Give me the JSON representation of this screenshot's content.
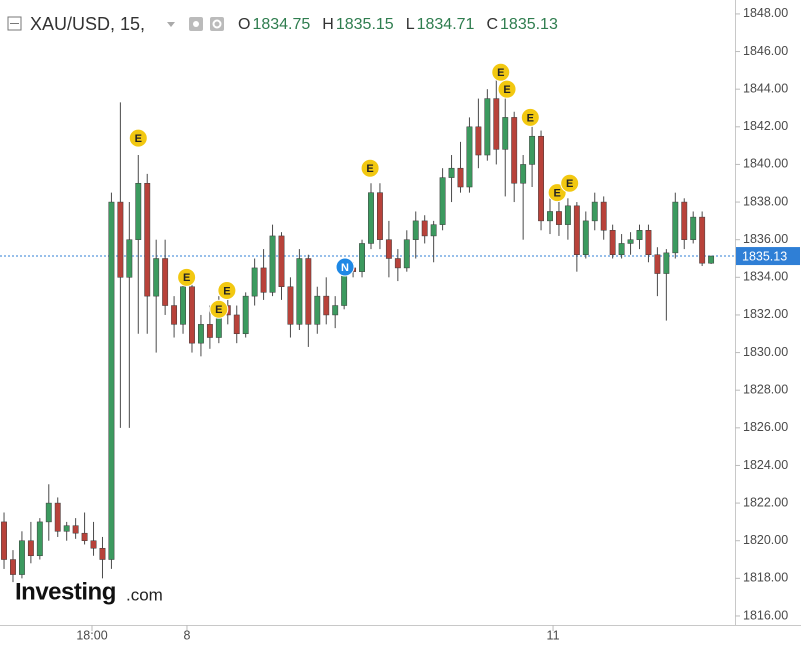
{
  "chart_data": {
    "type": "candlestick",
    "title": "XAU/USD, 15,",
    "ohlc_legend": [
      {
        "label": "O",
        "value": 1834.75
      },
      {
        "label": "H",
        "value": 1835.15
      },
      {
        "label": "L",
        "value": 1834.71
      },
      {
        "label": "C",
        "value": 1835.13
      }
    ],
    "open": [
      1821,
      1819,
      1818.2,
      1820,
      1819.2,
      1821,
      1822,
      1820.5,
      1820.8,
      1820.4,
      1820,
      1819.6,
      1819,
      1838,
      1834,
      1836,
      1839,
      1833,
      1835,
      1832.5,
      1831.5,
      1833.5,
      1830.5,
      1831.5,
      1830.8,
      1832.5,
      1832,
      1831,
      1833,
      1834.5,
      1833.2,
      1836.2,
      1833.5,
      1831.5,
      1835,
      1831.5,
      1833,
      1832,
      1832.5,
      1834.5,
      1834.3,
      1835.8,
      1838.5,
      1836,
      1835,
      1834.5,
      1836,
      1837,
      1836.2,
      1836.8,
      1839.3,
      1839.8,
      1838.8,
      1842,
      1840.5,
      1843.5,
      1840.8,
      1842.5,
      1839,
      1840,
      1841.5,
      1837,
      1837.5,
      1836.8,
      1837.8,
      1835.2,
      1837,
      1838,
      1836.5,
      1835.2,
      1835.8,
      1836,
      1836.5,
      1835.2,
      1834.2,
      1835.3,
      1838,
      1836,
      1837.2,
      1834.75
    ],
    "high": [
      1821.5,
      1819.5,
      1820.5,
      1821,
      1821.2,
      1823,
      1822.3,
      1821,
      1821.2,
      1821.5,
      1821,
      1820.2,
      1838.5,
      1843.3,
      1838,
      1840.5,
      1839.5,
      1836,
      1836,
      1833,
      1834,
      1833.8,
      1832,
      1832.5,
      1833,
      1833.4,
      1832.5,
      1833.2,
      1835,
      1835.5,
      1836.8,
      1836.4,
      1834,
      1835.5,
      1835.2,
      1833.5,
      1834,
      1833,
      1835,
      1834.8,
      1836,
      1839,
      1839,
      1837,
      1835.5,
      1836.5,
      1837.5,
      1837.3,
      1837,
      1839.8,
      1840.5,
      1841.2,
      1842.5,
      1843.5,
      1844,
      1845,
      1843.5,
      1842.8,
      1840.5,
      1842,
      1841.8,
      1838.5,
      1838.5,
      1838.2,
      1838,
      1837.5,
      1838.5,
      1838.3,
      1836.8,
      1836.3,
      1836.4,
      1836.8,
      1836.8,
      1835.6,
      1835.5,
      1838.5,
      1838.2,
      1837.5,
      1837.5,
      1835.15
    ],
    "low": [
      1818.5,
      1817.8,
      1818,
      1818.8,
      1819,
      1820,
      1820.2,
      1820,
      1820.1,
      1819.8,
      1819.2,
      1818,
      1818.5,
      1826,
      1826,
      1831,
      1831,
      1830,
      1832,
      1830.8,
      1831,
      1830,
      1829.8,
      1830.2,
      1830.5,
      1831.5,
      1830.5,
      1830.8,
      1832.5,
      1832.8,
      1833,
      1832.8,
      1830.8,
      1831.2,
      1830.3,
      1831,
      1831.5,
      1831.3,
      1832.3,
      1834,
      1834,
      1835.5,
      1835.5,
      1834,
      1833.8,
      1834.3,
      1835,
      1835.8,
      1834.8,
      1836.5,
      1838,
      1838.5,
      1838.5,
      1839.8,
      1840.2,
      1840,
      1838.3,
      1838,
      1836,
      1838.8,
      1836.5,
      1836.3,
      1836.2,
      1836,
      1834.3,
      1835,
      1836.5,
      1836,
      1835,
      1835,
      1835.2,
      1835.5,
      1834.8,
      1833,
      1831.7,
      1835,
      1835.5,
      1835.8,
      1834.6,
      1834.71
    ],
    "close": [
      1819,
      1818.2,
      1820,
      1819.2,
      1821,
      1822,
      1820.5,
      1820.8,
      1820.4,
      1820,
      1819.6,
      1819,
      1838,
      1834,
      1836,
      1839,
      1833,
      1835,
      1832.5,
      1831.5,
      1833.5,
      1830.5,
      1831.5,
      1830.8,
      1832.5,
      1832,
      1831,
      1833,
      1834.5,
      1833.2,
      1836.2,
      1833.5,
      1831.5,
      1835,
      1831.5,
      1833,
      1832,
      1832.5,
      1834.5,
      1834.3,
      1835.8,
      1838.5,
      1836,
      1835,
      1834.5,
      1836,
      1837,
      1836.2,
      1836.8,
      1839.3,
      1839.8,
      1838.8,
      1842,
      1840.5,
      1843.5,
      1840.8,
      1842.5,
      1839,
      1840,
      1841.5,
      1837,
      1837.5,
      1836.8,
      1837.8,
      1835.2,
      1837,
      1838,
      1836.5,
      1835.2,
      1835.8,
      1836,
      1836.5,
      1835.2,
      1834.2,
      1835.3,
      1838,
      1836,
      1837.2,
      1834.75,
      1835.13
    ],
    "up_color": "#3c9a5f",
    "down_color": "#b8423a",
    "last_price": 1835.13,
    "last_price_color": "#2f7fd6",
    "xlim": [
      -0.45,
      81.67
    ],
    "xticks": [
      {
        "value": 9.83,
        "label": "18:00"
      },
      {
        "value": 20.44,
        "label": "8"
      },
      {
        "value": 61.34,
        "label": "11"
      }
    ],
    "ylim": [
      1815.52,
      1848.74
    ],
    "yticks": [
      {
        "value": 1816,
        "label": "1816.00"
      },
      {
        "value": 1818,
        "label": "1818.00"
      },
      {
        "value": 1820,
        "label": "1820.00"
      },
      {
        "value": 1822,
        "label": "1822.00"
      },
      {
        "value": 1824,
        "label": "1824.00"
      },
      {
        "value": 1826,
        "label": "1826.00"
      },
      {
        "value": 1828,
        "label": "1828.00"
      },
      {
        "value": 1830,
        "label": "1830.00"
      },
      {
        "value": 1832,
        "label": "1832.00"
      },
      {
        "value": 1834,
        "label": "1834.00"
      },
      {
        "value": 1836,
        "label": "1836.00"
      },
      {
        "value": 1838,
        "label": "1838.00"
      },
      {
        "value": 1840,
        "label": "1840.00"
      },
      {
        "value": 1842,
        "label": "1842.00"
      },
      {
        "value": 1844,
        "label": "1844.00"
      },
      {
        "value": 1846,
        "label": "1846.00"
      },
      {
        "value": 1848,
        "label": "1848.00"
      }
    ],
    "grid": false,
    "events": [
      {
        "label": "E",
        "x": 15,
        "y": 1841.4
      },
      {
        "label": "E",
        "x": 20.4,
        "y": 1834.0
      },
      {
        "label": "E",
        "x": 24.9,
        "y": 1833.3
      },
      {
        "label": "E",
        "x": 24.0,
        "y": 1832.3
      },
      {
        "label": "N",
        "x": 38.1,
        "y": 1834.55
      },
      {
        "label": "E",
        "x": 40.9,
        "y": 1839.8
      },
      {
        "label": "E",
        "x": 55.5,
        "y": 1844.9
      },
      {
        "label": "E",
        "x": 56.2,
        "y": 1844.0
      },
      {
        "label": "E",
        "x": 58.8,
        "y": 1842.5
      },
      {
        "label": "E",
        "x": 61.8,
        "y": 1838.5
      },
      {
        "label": "E",
        "x": 63.2,
        "y": 1839.0
      }
    ],
    "watermark": {
      "brand": "Investing",
      "suffix": ".com"
    }
  }
}
